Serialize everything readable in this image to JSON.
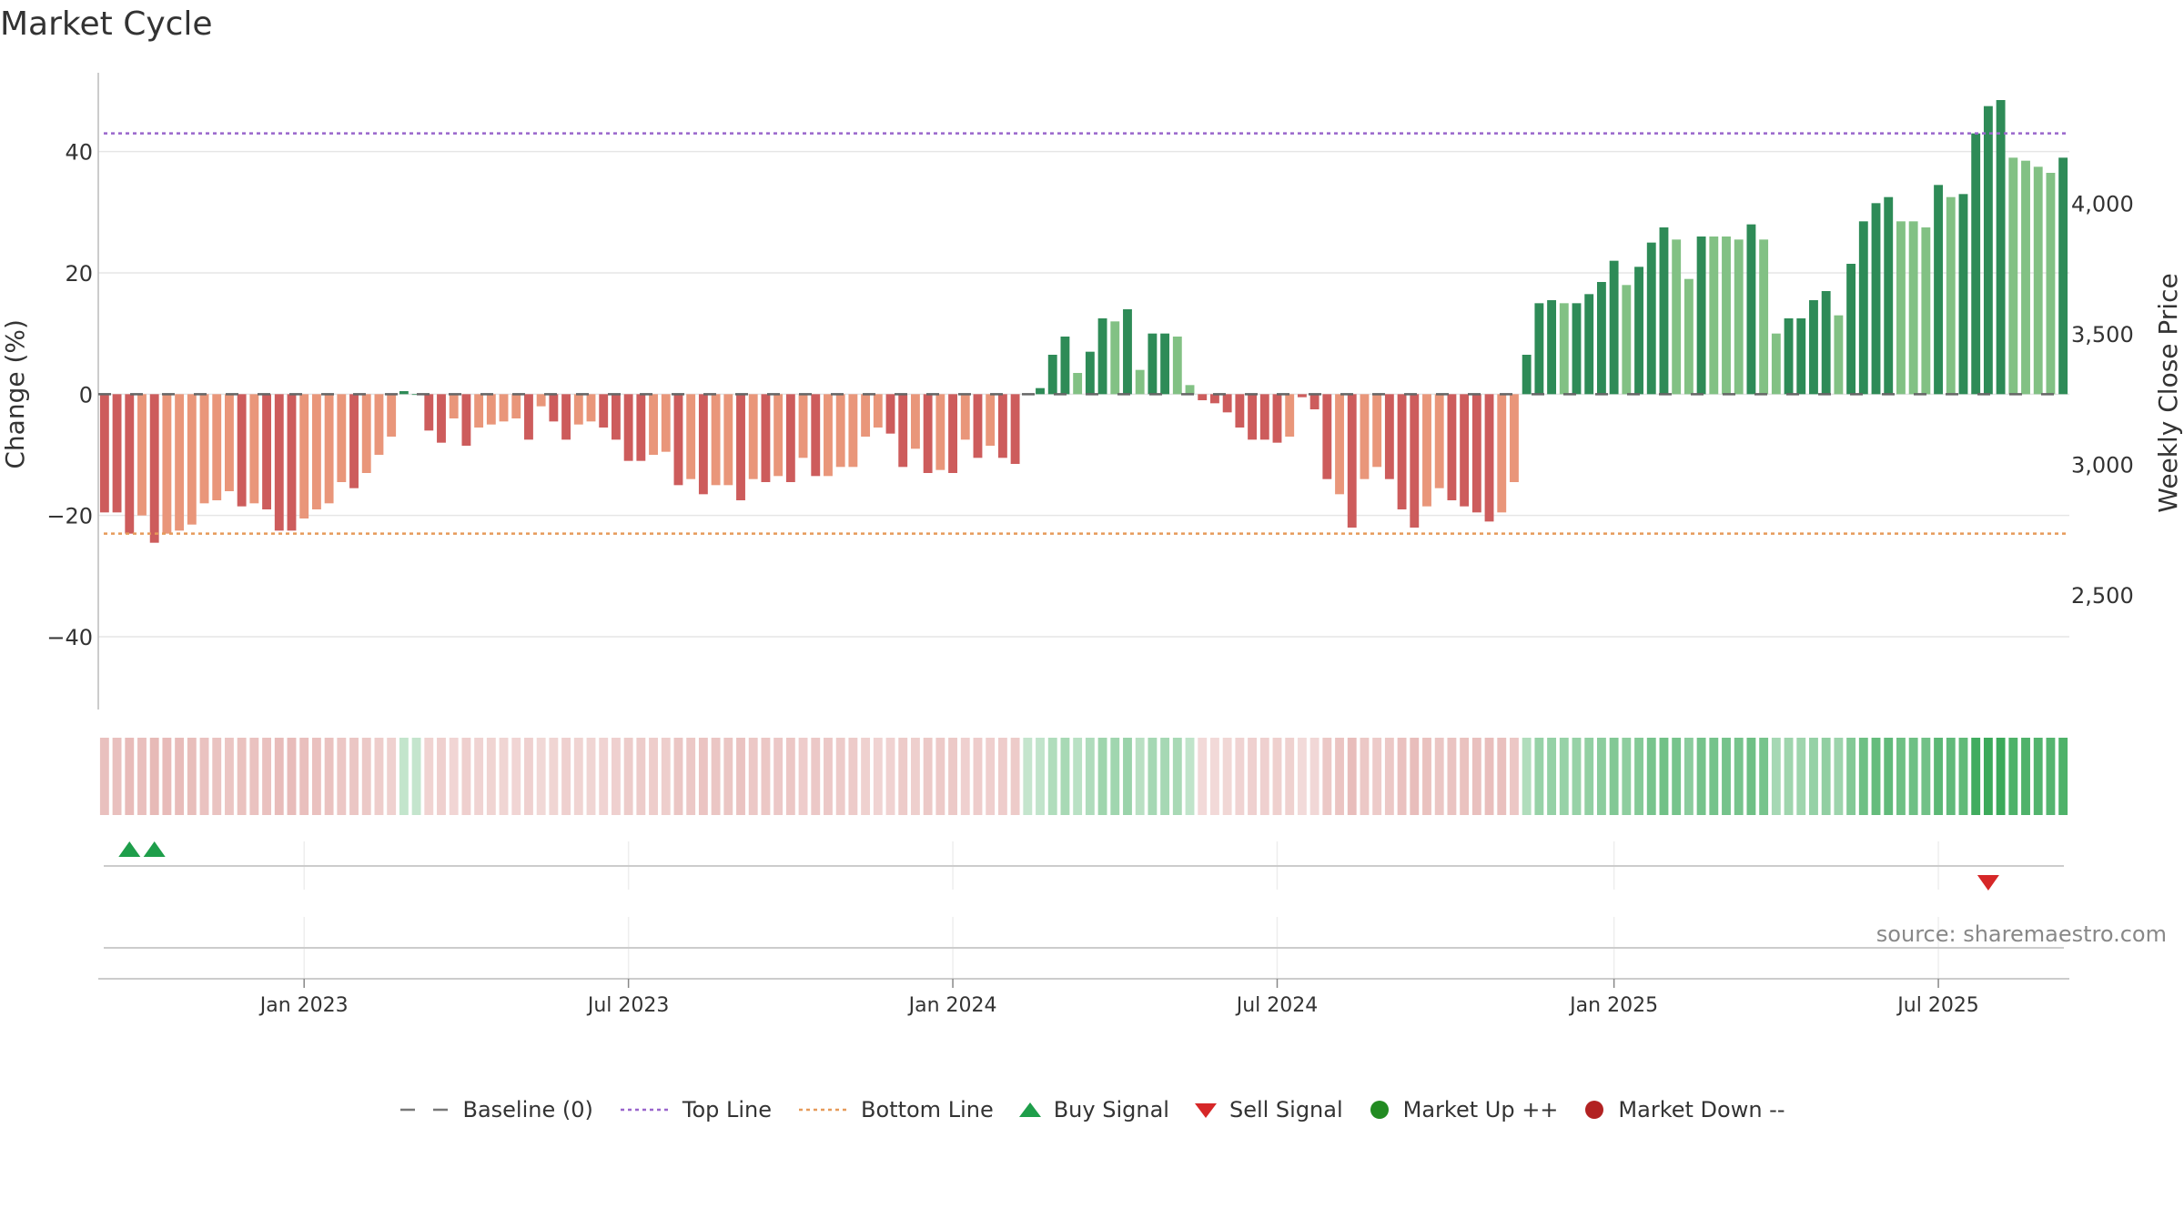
{
  "title": "Market Cycle",
  "source": "source: sharemaestro.com",
  "legend": [
    {
      "label": "Baseline (0)",
      "icon": "dash-line-icon",
      "color": "#777777"
    },
    {
      "label": "Top Line",
      "icon": "dotted-line-icon",
      "color": "#9966cc"
    },
    {
      "label": "Bottom Line",
      "icon": "dotted-line-icon",
      "color": "#e69a5a"
    },
    {
      "label": "Buy Signal",
      "icon": "triangle-up-icon",
      "color": "#1e9e4a"
    },
    {
      "label": "Sell Signal",
      "icon": "triangle-down-icon",
      "color": "#d62728"
    },
    {
      "label": "Market Up ++",
      "icon": "circle-icon",
      "color": "#228b22"
    },
    {
      "label": "Market Down --",
      "icon": "circle-icon",
      "color": "#b22222"
    }
  ],
  "chart_data": {
    "type": "bar",
    "ylabel": "Change (%)",
    "y2label": "Weekly Close Price",
    "ylim": [
      -52,
      53
    ],
    "yticks": [
      40,
      20,
      0,
      -20,
      -40
    ],
    "y2lim": [
      2060,
      4500
    ],
    "y2ticks": [
      4000,
      3500,
      3000,
      2500
    ],
    "xticks": [
      {
        "label": "Jan 2023",
        "week": 16
      },
      {
        "label": "Jul 2023",
        "week": 42
      },
      {
        "label": "Jan 2024",
        "week": 68
      },
      {
        "label": "Jul 2024",
        "week": 94
      },
      {
        "label": "Jan 2025",
        "week": 121
      },
      {
        "label": "Jul 2025",
        "week": 147
      }
    ],
    "top_line": 43,
    "bottom_line": -23,
    "baseline": 0,
    "colors": {
      "strong_up": "#2e8b57",
      "weak_up": "#82c184",
      "strong_down": "#cd5c5c",
      "weak_down": "#e9967a"
    },
    "values": [
      -19.5,
      -19.5,
      -23.0,
      -20.0,
      -24.5,
      -23.0,
      -22.5,
      -21.5,
      -18.0,
      -17.5,
      -16.0,
      -18.5,
      -18.0,
      -19.0,
      -22.5,
      -22.5,
      -20.5,
      -19.0,
      -18.0,
      -14.5,
      -15.5,
      -13.0,
      -10.0,
      -7.0,
      0.5,
      0.0,
      -6.0,
      -8.0,
      -4.0,
      -8.5,
      -5.5,
      -5.0,
      -4.5,
      -4.0,
      -7.5,
      -2.0,
      -4.5,
      -7.5,
      -5.0,
      -4.5,
      -5.5,
      -7.5,
      -11.0,
      -11.0,
      -10.0,
      -9.5,
      -15.0,
      -14.0,
      -16.5,
      -15.0,
      -15.0,
      -17.5,
      -14.0,
      -14.5,
      -13.5,
      -14.5,
      -10.5,
      -13.5,
      -13.5,
      -12.0,
      -12.0,
      -7.0,
      -5.5,
      -6.5,
      -12.0,
      -9.0,
      -13.0,
      -12.5,
      -13.0,
      -7.5,
      -10.5,
      -8.5,
      -10.5,
      -11.5,
      0.0,
      1.0,
      6.5,
      9.5,
      3.5,
      7.0,
      12.5,
      12.0,
      14.0,
      4.0,
      10.0,
      10.0,
      9.5,
      1.5,
      -1.0,
      -1.5,
      -3.0,
      -5.5,
      -7.5,
      -7.5,
      -8.0,
      -7.0,
      -0.5,
      -2.5,
      -14.0,
      -16.5,
      -22.0,
      -14.0,
      -12.0,
      -14.0,
      -19.0,
      -22.0,
      -18.5,
      -15.5,
      -17.5,
      -18.5,
      -19.5,
      -21.0,
      -19.5,
      -14.5,
      6.5,
      15.0,
      15.5,
      15.0,
      15.0,
      16.5,
      18.5,
      22.0,
      18.0,
      21.0,
      25.0,
      27.5,
      25.5,
      19.0,
      26.0,
      26.0,
      26.0,
      25.5,
      28.0,
      25.5,
      10.0,
      12.5,
      12.5,
      15.5,
      17.0,
      13.0,
      21.5,
      28.5,
      31.5,
      32.5,
      28.5,
      28.5,
      27.5,
      34.5,
      32.5,
      33.0,
      43.0,
      47.5,
      48.5,
      39.0,
      38.5,
      37.5,
      36.5,
      39.0
    ],
    "strength": [
      1,
      1,
      1,
      0,
      1,
      0,
      0,
      0,
      0,
      0,
      0,
      1,
      0,
      1,
      1,
      1,
      0,
      0,
      0,
      0,
      1,
      0,
      0,
      0,
      1,
      1,
      1,
      1,
      0,
      1,
      0,
      0,
      0,
      0,
      1,
      0,
      1,
      1,
      0,
      0,
      1,
      1,
      1,
      1,
      0,
      0,
      1,
      0,
      1,
      0,
      0,
      1,
      0,
      1,
      0,
      1,
      0,
      1,
      0,
      0,
      0,
      0,
      0,
      1,
      1,
      0,
      1,
      0,
      1,
      0,
      1,
      0,
      1,
      1,
      1,
      1,
      1,
      1,
      0,
      1,
      1,
      0,
      1,
      0,
      1,
      1,
      0,
      0,
      1,
      1,
      1,
      1,
      1,
      1,
      1,
      0,
      1,
      1,
      1,
      0,
      1,
      0,
      0,
      1,
      1,
      1,
      0,
      0,
      1,
      1,
      1,
      1,
      0,
      0,
      1,
      1,
      1,
      0,
      1,
      1,
      1,
      1,
      0,
      1,
      1,
      1,
      0,
      0,
      1,
      0,
      0,
      0,
      1,
      0,
      0,
      1,
      1,
      1,
      1,
      0,
      1,
      1,
      1,
      1,
      0,
      0,
      0,
      1,
      0,
      1,
      1,
      1,
      1,
      0,
      0,
      0,
      0,
      1
    ],
    "buy_signals": [
      2,
      4
    ],
    "sell_signals": [
      151
    ]
  }
}
